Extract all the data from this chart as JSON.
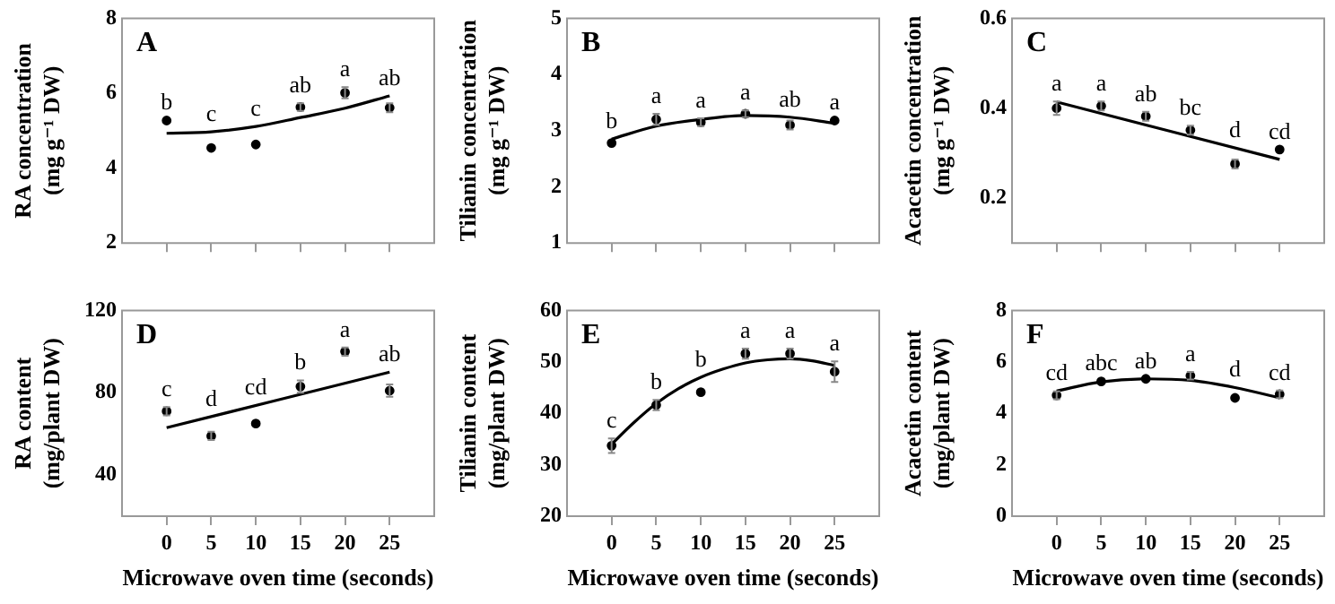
{
  "chart_data": [
    {
      "type": "scatter",
      "ylabel": "RA concentration (mg g⁻¹ DW)",
      "xlim": [
        -5,
        30
      ],
      "xticks": [
        0,
        5,
        10,
        15,
        20,
        25
      ],
      "ylim": [
        2,
        8
      ],
      "yticks": [
        2,
        4,
        6,
        8
      ],
      "tick_labels": "y",
      "grid": false,
      "legend": false,
      "line_style": "solid",
      "series": [
        {
          "type": "scatter",
          "marker": "circle",
          "color": "#000000",
          "x": [
            0,
            5,
            10,
            15,
            20,
            25
          ],
          "values": [
            5.27,
            4.54,
            4.63,
            5.63,
            6.01,
            5.61
          ],
          "errors": [
            null,
            null,
            null,
            0.1,
            0.15,
            0.12
          ]
        },
        {
          "type": "line",
          "marker": "none",
          "color": "#000000",
          "x": [
            0,
            5,
            10,
            15,
            20,
            25
          ],
          "values": [
            4.93,
            4.97,
            5.11,
            5.35,
            5.6,
            5.93
          ]
        }
      ],
      "annotations": [
        "A",
        {
          "text": "b",
          "x": 0,
          "y": 5.27
        },
        {
          "text": "c",
          "x": 5,
          "y": 4.54
        },
        {
          "text": "c",
          "x": 10,
          "y": 4.63
        },
        {
          "text": "ab",
          "x": 15,
          "y": 5.63
        },
        {
          "text": "a",
          "x": 20,
          "y": 6.01
        },
        {
          "text": "ab",
          "x": 25,
          "y": 5.61
        }
      ]
    },
    {
      "type": "scatter",
      "ylabel": "Tilianin concentration (mg g⁻¹ DW)",
      "xlim": [
        -5,
        30
      ],
      "xticks": [
        0,
        5,
        10,
        15,
        20,
        25
      ],
      "ylim": [
        1,
        5
      ],
      "yticks": [
        1,
        2,
        3,
        4,
        5
      ],
      "tick_labels": "y",
      "grid": false,
      "legend": false,
      "line_style": "solid",
      "series": [
        {
          "type": "scatter",
          "marker": "circle",
          "color": "#000000",
          "x": [
            0,
            5,
            10,
            15,
            20,
            25
          ],
          "values": [
            2.78,
            3.2,
            3.15,
            3.3,
            3.1,
            3.18
          ],
          "errors": [
            null,
            0.1,
            0.07,
            0.06,
            0.08,
            null
          ]
        },
        {
          "type": "line",
          "marker": "none",
          "color": "#000000",
          "x": [
            0,
            5,
            10,
            15,
            20,
            25
          ],
          "values": [
            2.85,
            3.08,
            3.2,
            3.27,
            3.24,
            3.13
          ]
        }
      ],
      "annotations": [
        "B",
        {
          "text": "b",
          "x": 0,
          "y": 2.78
        },
        {
          "text": "a",
          "x": 5,
          "y": 3.2
        },
        {
          "text": "a",
          "x": 10,
          "y": 3.15
        },
        {
          "text": "a",
          "x": 15,
          "y": 3.3
        },
        {
          "text": "ab",
          "x": 20,
          "y": 3.1
        },
        {
          "text": "a",
          "x": 25,
          "y": 3.18
        }
      ]
    },
    {
      "type": "scatter",
      "ylabel": "Acacetin concentration (mg g⁻¹ DW)",
      "xlim": [
        -5,
        30
      ],
      "xticks": [
        0,
        5,
        10,
        15,
        20,
        25
      ],
      "ylim": [
        0.1,
        0.6
      ],
      "yticks": [
        0.2,
        0.4,
        0.6
      ],
      "tick_labels": "y",
      "grid": false,
      "legend": false,
      "line_style": "solid",
      "series": [
        {
          "type": "scatter",
          "marker": "circle",
          "color": "#000000",
          "x": [
            0,
            5,
            10,
            15,
            20,
            25
          ],
          "values": [
            0.4,
            0.405,
            0.382,
            0.351,
            0.276,
            0.308
          ],
          "errors": [
            0.015,
            0.01,
            0.01,
            0.01,
            0.01,
            null
          ]
        },
        {
          "type": "line",
          "marker": "none",
          "color": "#000000",
          "x": [
            0,
            25
          ],
          "values": [
            0.414,
            0.286
          ]
        }
      ],
      "annotations": [
        "C",
        {
          "text": "a",
          "x": 0,
          "y": 0.4
        },
        {
          "text": "a",
          "x": 5,
          "y": 0.405
        },
        {
          "text": "ab",
          "x": 10,
          "y": 0.382
        },
        {
          "text": "bc",
          "x": 15,
          "y": 0.351
        },
        {
          "text": "d",
          "x": 20,
          "y": 0.276
        },
        {
          "text": "cd",
          "x": 25,
          "y": 0.308
        }
      ]
    },
    {
      "type": "scatter",
      "xlabel": "Microwave oven time (seconds)",
      "ylabel": "RA content (mg/plant DW)",
      "xlim": [
        -5,
        30
      ],
      "xticks": [
        0,
        5,
        10,
        15,
        20,
        25
      ],
      "ylim": [
        20,
        120
      ],
      "yticks": [
        40,
        80,
        120
      ],
      "grid": false,
      "legend": false,
      "line_style": "solid",
      "series": [
        {
          "type": "scatter",
          "marker": "circle",
          "color": "#000000",
          "x": [
            0,
            5,
            10,
            15,
            20,
            25
          ],
          "values": [
            71,
            59,
            65,
            83,
            100,
            81
          ],
          "errors": [
            2,
            2,
            null,
            3,
            2,
            3
          ]
        },
        {
          "type": "line",
          "marker": "none",
          "color": "#000000",
          "x": [
            0,
            25
          ],
          "values": [
            63,
            90
          ]
        }
      ],
      "annotations": [
        "D",
        {
          "text": "c",
          "x": 0,
          "y": 71
        },
        {
          "text": "d",
          "x": 5,
          "y": 59
        },
        {
          "text": "cd",
          "x": 10,
          "y": 65
        },
        {
          "text": "b",
          "x": 15,
          "y": 83
        },
        {
          "text": "a",
          "x": 20,
          "y": 100
        },
        {
          "text": "ab",
          "x": 25,
          "y": 81
        }
      ]
    },
    {
      "type": "scatter",
      "xlabel": "Microwave oven time (seconds)",
      "ylabel": "Tilianin content (mg/plant DW)",
      "xlim": [
        -5,
        30
      ],
      "xticks": [
        0,
        5,
        10,
        15,
        20,
        25
      ],
      "ylim": [
        20,
        60
      ],
      "yticks": [
        20,
        30,
        40,
        50,
        60
      ],
      "grid": false,
      "legend": false,
      "line_style": "solid",
      "series": [
        {
          "type": "scatter",
          "marker": "circle",
          "color": "#000000",
          "x": [
            0,
            5,
            10,
            15,
            20,
            25
          ],
          "values": [
            33.7,
            41.6,
            44.1,
            51.6,
            51.6,
            48.1
          ],
          "errors": [
            1.4,
            1,
            null,
            1,
            1,
            2
          ]
        },
        {
          "type": "line",
          "marker": "none",
          "color": "#000000",
          "x": [
            0,
            2.5,
            5,
            7.5,
            10,
            12.5,
            15,
            17.5,
            20,
            22.5,
            25
          ],
          "values": [
            34,
            38.2,
            41.9,
            44.8,
            47,
            48.6,
            49.8,
            50.4,
            50.6,
            50.2,
            49.3
          ]
        }
      ],
      "annotations": [
        "E",
        {
          "text": "c",
          "x": 0,
          "y": 33.7
        },
        {
          "text": "b",
          "x": 5,
          "y": 41.6
        },
        {
          "text": "b",
          "x": 10,
          "y": 44.1
        },
        {
          "text": "a",
          "x": 15,
          "y": 51.6
        },
        {
          "text": "a",
          "x": 20,
          "y": 51.6
        },
        {
          "text": "a",
          "x": 25,
          "y": 48.1
        }
      ]
    },
    {
      "type": "scatter",
      "xlabel": "Microwave oven time (seconds)",
      "ylabel": "Acacetin content (mg/plant DW)",
      "xlim": [
        -5,
        30
      ],
      "xticks": [
        0,
        5,
        10,
        15,
        20,
        25
      ],
      "ylim": [
        0,
        8
      ],
      "yticks": [
        0,
        2,
        4,
        6,
        8
      ],
      "grid": false,
      "legend": false,
      "line_style": "solid",
      "series": [
        {
          "type": "scatter",
          "marker": "circle",
          "color": "#000000",
          "x": [
            0,
            5,
            10,
            15,
            20,
            25
          ],
          "values": [
            4.7,
            5.24,
            5.34,
            5.46,
            4.6,
            4.74
          ],
          "errors": [
            0.15,
            null,
            null,
            0.15,
            null,
            0.15
          ]
        },
        {
          "type": "line",
          "marker": "none",
          "color": "#000000",
          "x": [
            0,
            5,
            10,
            15,
            20,
            25
          ],
          "values": [
            4.87,
            5.22,
            5.34,
            5.28,
            5.0,
            4.6
          ]
        }
      ],
      "annotations": [
        "F",
        {
          "text": "cd",
          "x": 0,
          "y": 4.7
        },
        {
          "text": "abc",
          "x": 5,
          "y": 5.24
        },
        {
          "text": "ab",
          "x": 10,
          "y": 5.34
        },
        {
          "text": "a",
          "x": 15,
          "y": 5.46
        },
        {
          "text": "d",
          "x": 20,
          "y": 4.6
        },
        {
          "text": "cd",
          "x": 25,
          "y": 4.74
        }
      ]
    }
  ]
}
